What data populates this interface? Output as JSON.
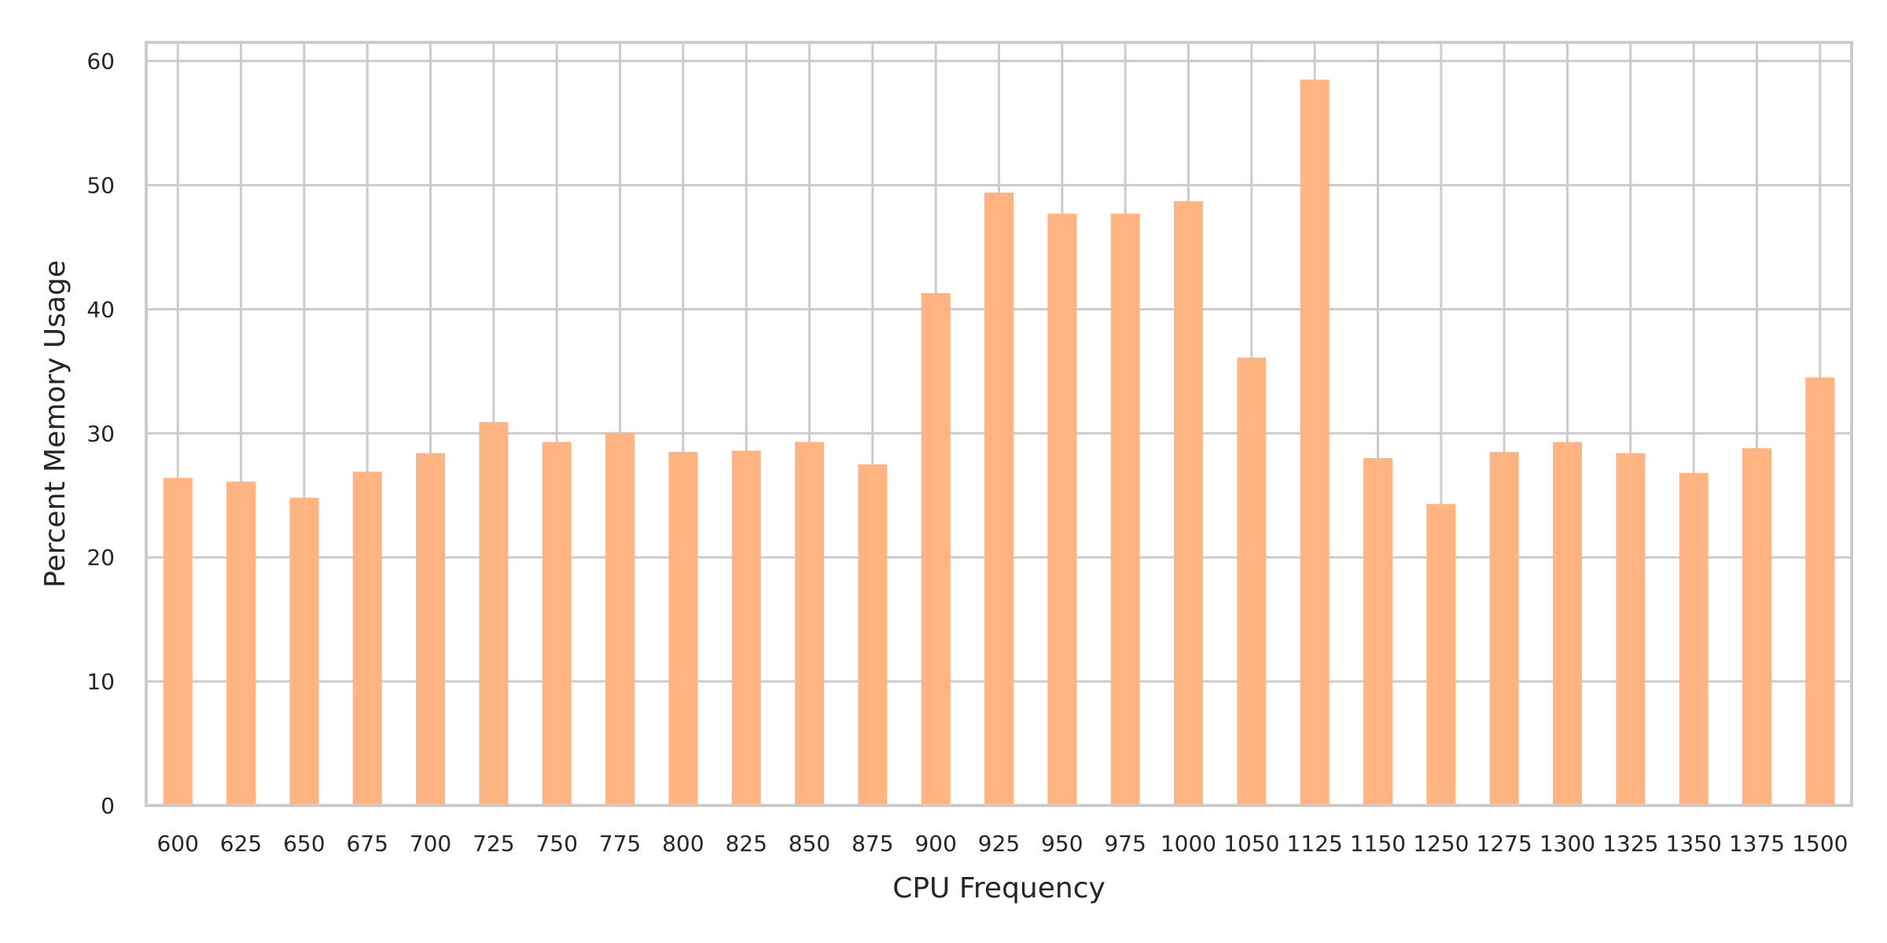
{
  "chart_data": {
    "type": "bar",
    "xlabel": "CPU Frequency",
    "ylabel": "Percent Memory Usage",
    "categories": [
      "600",
      "625",
      "650",
      "675",
      "700",
      "725",
      "750",
      "775",
      "800",
      "825",
      "850",
      "875",
      "900",
      "925",
      "950",
      "975",
      "1000",
      "1050",
      "1125",
      "1150",
      "1250",
      "1275",
      "1300",
      "1325",
      "1350",
      "1375",
      "1500"
    ],
    "values": [
      26.4,
      26.1,
      24.8,
      26.9,
      28.4,
      30.9,
      29.3,
      30.0,
      28.5,
      28.6,
      29.3,
      27.5,
      41.3,
      49.4,
      47.7,
      47.7,
      48.7,
      36.1,
      58.5,
      28.0,
      24.3,
      28.5,
      29.3,
      28.4,
      26.8,
      28.8,
      34.5
    ],
    "ylim": [
      0,
      61.5
    ],
    "yticks": [
      0,
      10,
      20,
      30,
      40,
      50,
      60
    ],
    "grid": true,
    "colors": {
      "bar": "#ffb482",
      "grid": "#cccccc",
      "axes": "#cccccc",
      "text": "#262626"
    }
  }
}
